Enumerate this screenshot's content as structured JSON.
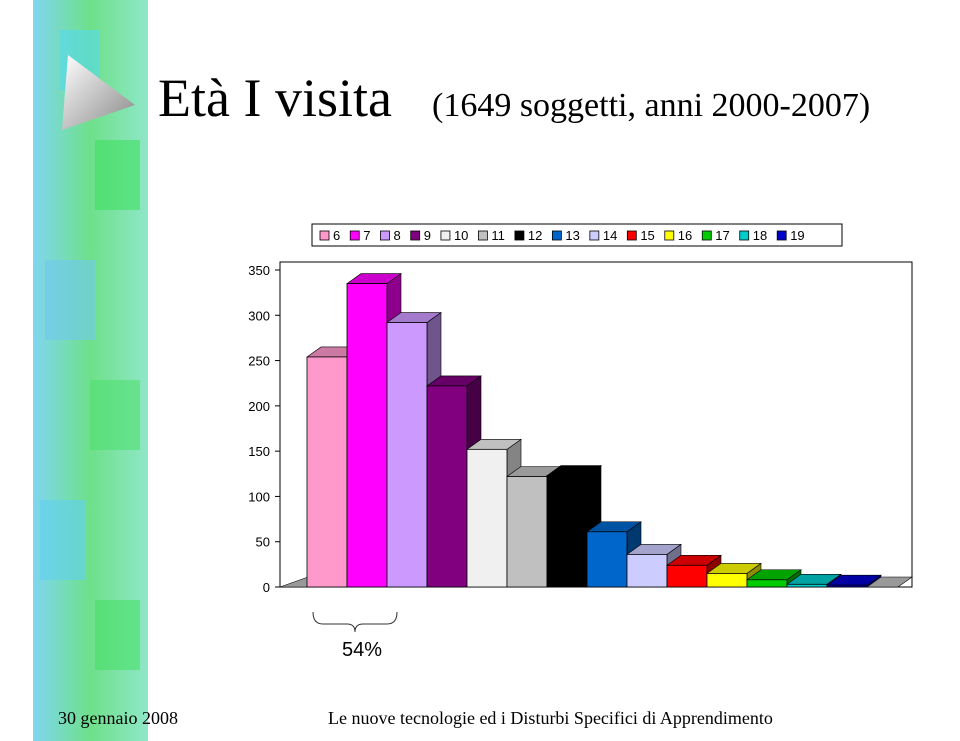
{
  "chart_data": {
    "type": "bar",
    "title": "Età I visita",
    "subtitle": "(1649 soggetti, anni 2000-2007)",
    "series": [
      {
        "name": "6",
        "color": "#ff99cc",
        "values": [
          254
        ]
      },
      {
        "name": "7",
        "color": "#ff00ff",
        "values": [
          335
        ]
      },
      {
        "name": "8",
        "color": "#cc99ff",
        "values": [
          292
        ]
      },
      {
        "name": "9",
        "color": "#800080",
        "values": [
          222
        ]
      },
      {
        "name": "10",
        "color": "#f0f0f0",
        "values": [
          152
        ]
      },
      {
        "name": "11",
        "color": "#c0c0c0",
        "values": [
          122
        ]
      },
      {
        "name": "12",
        "color": "#000000",
        "values": [
          123
        ]
      },
      {
        "name": "13",
        "color": "#0066cc",
        "values": [
          61
        ]
      },
      {
        "name": "14",
        "color": "#ccccff",
        "values": [
          36
        ]
      },
      {
        "name": "15",
        "color": "#ff0000",
        "values": [
          24
        ]
      },
      {
        "name": "16",
        "color": "#ffff00",
        "values": [
          15
        ]
      },
      {
        "name": "17",
        "color": "#00cc00",
        "values": [
          8
        ]
      },
      {
        "name": "18",
        "color": "#00cccc",
        "values": [
          3
        ]
      },
      {
        "name": "19",
        "color": "#0000cc",
        "values": [
          2
        ]
      }
    ],
    "ylim": [
      0,
      350
    ],
    "yticks": [
      0,
      50,
      100,
      150,
      200,
      250,
      300,
      350
    ],
    "annotation": "54%",
    "legend": "top"
  },
  "footer": {
    "date": "30 gennaio 2008",
    "event": "Le nuove tecnologie ed i Disturbi Specifici di Apprendimento"
  }
}
